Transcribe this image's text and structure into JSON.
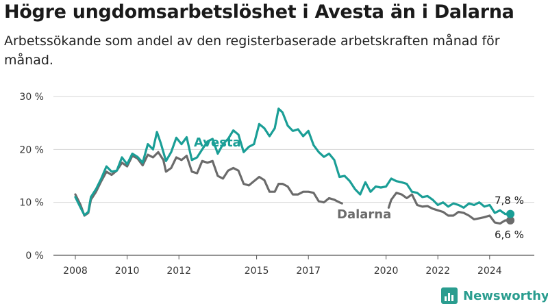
{
  "title": "Högre ungdomsarbetslöshet i Avesta än i Dalarna",
  "subtitle": "Arbetssökande som andel av den registerbaserade arbetskraften månad för månad.",
  "brand": "Newsworthy",
  "colors": {
    "avesta": "#1a9e96",
    "dalarna": "#6b6b6b"
  },
  "chart_data": {
    "type": "line",
    "title": "Högre ungdomsarbetslöshet i Avesta än i Dalarna",
    "subtitle": "Arbetssökande som andel av den registerbaserade arbetskraften månad för månad.",
    "ylim": [
      0,
      30
    ],
    "xlim": [
      2007.5,
      2025.6
    ],
    "y_ticks": [
      0,
      10,
      20,
      30
    ],
    "y_tick_labels": [
      "0 %",
      "10 %",
      "20 %",
      "30 %"
    ],
    "x_ticks": [
      2008,
      2010,
      2012,
      2015,
      2017,
      2020,
      2022,
      2024
    ],
    "x_tick_labels": [
      "2008",
      "2010",
      "2012",
      "2015",
      "2017",
      "2020",
      "2022",
      "2024"
    ],
    "grid": "horizontal",
    "series": [
      {
        "name": "Avesta",
        "end_label": "7,8 %",
        "points": [
          [
            2008.0,
            11.0
          ],
          [
            2008.2,
            9.0
          ],
          [
            2008.35,
            7.6
          ],
          [
            2008.5,
            8.2
          ],
          [
            2008.6,
            11.0
          ],
          [
            2008.8,
            12.5
          ],
          [
            2009.0,
            14.5
          ],
          [
            2009.2,
            16.8
          ],
          [
            2009.4,
            15.8
          ],
          [
            2009.6,
            16.0
          ],
          [
            2009.8,
            18.5
          ],
          [
            2010.0,
            17.2
          ],
          [
            2010.2,
            19.2
          ],
          [
            2010.4,
            18.6
          ],
          [
            2010.6,
            17.5
          ],
          [
            2010.8,
            21.0
          ],
          [
            2011.0,
            20.0
          ],
          [
            2011.15,
            23.3
          ],
          [
            2011.3,
            21.2
          ],
          [
            2011.5,
            17.8
          ],
          [
            2011.7,
            19.5
          ],
          [
            2011.9,
            22.2
          ],
          [
            2012.1,
            21.0
          ],
          [
            2012.3,
            22.3
          ],
          [
            2012.5,
            18.0
          ],
          [
            2012.7,
            18.5
          ],
          [
            2012.9,
            20.0
          ],
          [
            2013.1,
            21.5
          ],
          [
            2013.3,
            22.0
          ],
          [
            2013.5,
            19.2
          ],
          [
            2013.7,
            21.0
          ],
          [
            2013.9,
            22.0
          ],
          [
            2014.1,
            23.6
          ],
          [
            2014.3,
            22.8
          ],
          [
            2014.5,
            19.5
          ],
          [
            2014.7,
            20.5
          ],
          [
            2014.9,
            21.0
          ],
          [
            2015.1,
            24.8
          ],
          [
            2015.3,
            24.0
          ],
          [
            2015.5,
            22.5
          ],
          [
            2015.7,
            24.0
          ],
          [
            2015.85,
            27.7
          ],
          [
            2016.0,
            27.0
          ],
          [
            2016.2,
            24.5
          ],
          [
            2016.4,
            23.5
          ],
          [
            2016.6,
            23.8
          ],
          [
            2016.8,
            22.5
          ],
          [
            2017.0,
            23.5
          ],
          [
            2017.2,
            20.8
          ],
          [
            2017.4,
            19.5
          ],
          [
            2017.6,
            18.6
          ],
          [
            2017.8,
            19.2
          ],
          [
            2018.0,
            18.0
          ],
          [
            2018.2,
            14.8
          ],
          [
            2018.4,
            15.0
          ],
          [
            2018.6,
            14.0
          ],
          [
            2018.8,
            12.5
          ],
          [
            2019.0,
            11.5
          ],
          [
            2019.2,
            13.8
          ],
          [
            2019.4,
            12.0
          ],
          [
            2019.6,
            13.0
          ],
          [
            2019.8,
            12.8
          ],
          [
            2020.0,
            13.0
          ],
          [
            2020.2,
            14.5
          ],
          [
            2020.4,
            14.0
          ],
          [
            2020.6,
            13.8
          ],
          [
            2020.8,
            13.5
          ],
          [
            2021.0,
            12.0
          ],
          [
            2021.2,
            11.8
          ],
          [
            2021.4,
            11.0
          ],
          [
            2021.6,
            11.2
          ],
          [
            2021.8,
            10.5
          ],
          [
            2022.0,
            9.5
          ],
          [
            2022.2,
            10.0
          ],
          [
            2022.4,
            9.2
          ],
          [
            2022.6,
            9.8
          ],
          [
            2022.8,
            9.5
          ],
          [
            2023.0,
            9.0
          ],
          [
            2023.2,
            9.8
          ],
          [
            2023.4,
            9.5
          ],
          [
            2023.6,
            10.0
          ],
          [
            2023.8,
            9.2
          ],
          [
            2024.0,
            9.5
          ],
          [
            2024.2,
            8.0
          ],
          [
            2024.4,
            8.5
          ],
          [
            2024.6,
            7.8
          ],
          [
            2024.8,
            7.8
          ]
        ]
      },
      {
        "name": "Dalarna",
        "end_label": "6,6 %",
        "points": [
          [
            2008.0,
            11.5
          ],
          [
            2008.2,
            9.5
          ],
          [
            2008.35,
            7.5
          ],
          [
            2008.5,
            8.0
          ],
          [
            2008.6,
            10.5
          ],
          [
            2008.8,
            12.0
          ],
          [
            2009.0,
            14.0
          ],
          [
            2009.2,
            15.8
          ],
          [
            2009.4,
            15.2
          ],
          [
            2009.6,
            16.0
          ],
          [
            2009.8,
            17.5
          ],
          [
            2010.0,
            16.8
          ],
          [
            2010.2,
            18.8
          ],
          [
            2010.4,
            18.3
          ],
          [
            2010.6,
            17.0
          ],
          [
            2010.8,
            19.0
          ],
          [
            2011.0,
            18.5
          ],
          [
            2011.2,
            19.5
          ],
          [
            2011.4,
            18.0
          ],
          [
            2011.5,
            15.8
          ],
          [
            2011.7,
            16.5
          ],
          [
            2011.9,
            18.5
          ],
          [
            2012.1,
            18.0
          ],
          [
            2012.3,
            18.8
          ],
          [
            2012.5,
            15.8
          ],
          [
            2012.7,
            15.5
          ],
          [
            2012.9,
            17.8
          ],
          [
            2013.1,
            17.5
          ],
          [
            2013.3,
            17.8
          ],
          [
            2013.5,
            15.0
          ],
          [
            2013.7,
            14.5
          ],
          [
            2013.9,
            16.0
          ],
          [
            2014.1,
            16.5
          ],
          [
            2014.3,
            16.0
          ],
          [
            2014.5,
            13.5
          ],
          [
            2014.7,
            13.2
          ],
          [
            2014.9,
            14.0
          ],
          [
            2015.1,
            14.8
          ],
          [
            2015.3,
            14.2
          ],
          [
            2015.5,
            12.0
          ],
          [
            2015.7,
            12.0
          ],
          [
            2015.85,
            13.5
          ],
          [
            2016.0,
            13.5
          ],
          [
            2016.2,
            13.0
          ],
          [
            2016.4,
            11.5
          ],
          [
            2016.6,
            11.5
          ],
          [
            2016.8,
            12.0
          ],
          [
            2017.0,
            12.0
          ],
          [
            2017.2,
            11.8
          ],
          [
            2017.4,
            10.2
          ],
          [
            2017.6,
            10.0
          ],
          [
            2017.8,
            10.8
          ],
          [
            2018.0,
            10.5
          ],
          [
            2018.2,
            10.0
          ],
          [
            2018.3,
            9.8
          ],
          null,
          [
            2020.1,
            9.0
          ],
          [
            2020.2,
            10.5
          ],
          [
            2020.4,
            11.8
          ],
          [
            2020.6,
            11.5
          ],
          [
            2020.8,
            10.8
          ],
          [
            2021.0,
            11.5
          ],
          [
            2021.2,
            9.5
          ],
          [
            2021.4,
            9.2
          ],
          [
            2021.6,
            9.3
          ],
          [
            2021.8,
            8.8
          ],
          [
            2022.0,
            8.5
          ],
          [
            2022.2,
            8.2
          ],
          [
            2022.4,
            7.5
          ],
          [
            2022.6,
            7.5
          ],
          [
            2022.8,
            8.2
          ],
          [
            2023.0,
            8.0
          ],
          [
            2023.2,
            7.5
          ],
          [
            2023.4,
            6.8
          ],
          [
            2023.6,
            7.0
          ],
          [
            2023.8,
            7.2
          ],
          [
            2024.0,
            7.5
          ],
          [
            2024.2,
            6.2
          ],
          [
            2024.4,
            6.0
          ],
          [
            2024.6,
            6.6
          ],
          [
            2024.8,
            6.6
          ]
        ]
      }
    ]
  }
}
